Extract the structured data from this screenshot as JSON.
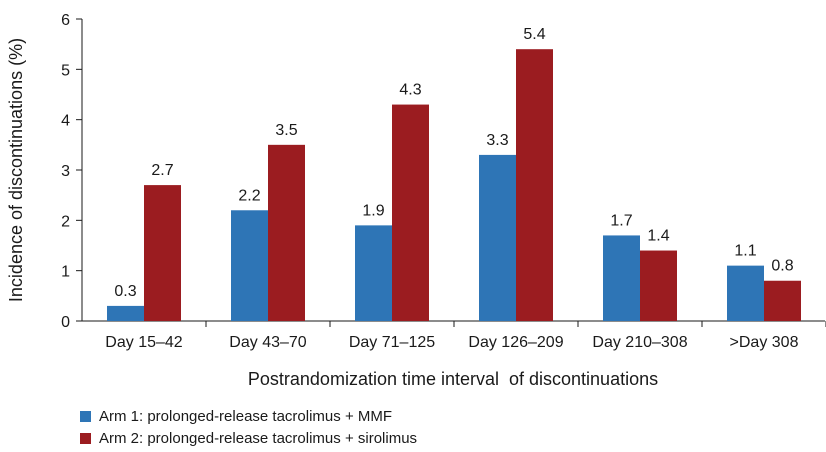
{
  "chart_data": {
    "type": "bar",
    "title": "",
    "xlabel": "Postrandomization time interval  of discontinuations",
    "ylabel": "Incidence of discontinuations (%)",
    "ylim": [
      0,
      6
    ],
    "yticks": [
      0,
      1,
      2,
      3,
      4,
      5,
      6
    ],
    "grid": false,
    "legend_position": "bottom-left",
    "categories": [
      "Day 15–42",
      "Day 43–70",
      "Day 71–125",
      "Day 126–209",
      "Day 210–308",
      ">Day 308"
    ],
    "series": [
      {
        "name": "Arm 1: prolonged-release tacrolimus + MMF",
        "color": "#2e75b6",
        "values": [
          0.3,
          2.2,
          1.9,
          3.3,
          1.7,
          1.1
        ],
        "labels": [
          "0.3",
          "2.2",
          "1.9",
          "3.3",
          "1.7",
          "1.1"
        ]
      },
      {
        "name": "Arm 2: prolonged-release tacrolimus + sirolimus",
        "color": "#9b1c20",
        "values": [
          2.7,
          3.5,
          4.3,
          5.4,
          1.4,
          0.8
        ],
        "labels": [
          "2.7",
          "3.5",
          "4.3",
          "5.4",
          "1.4",
          "0.8"
        ]
      }
    ]
  }
}
